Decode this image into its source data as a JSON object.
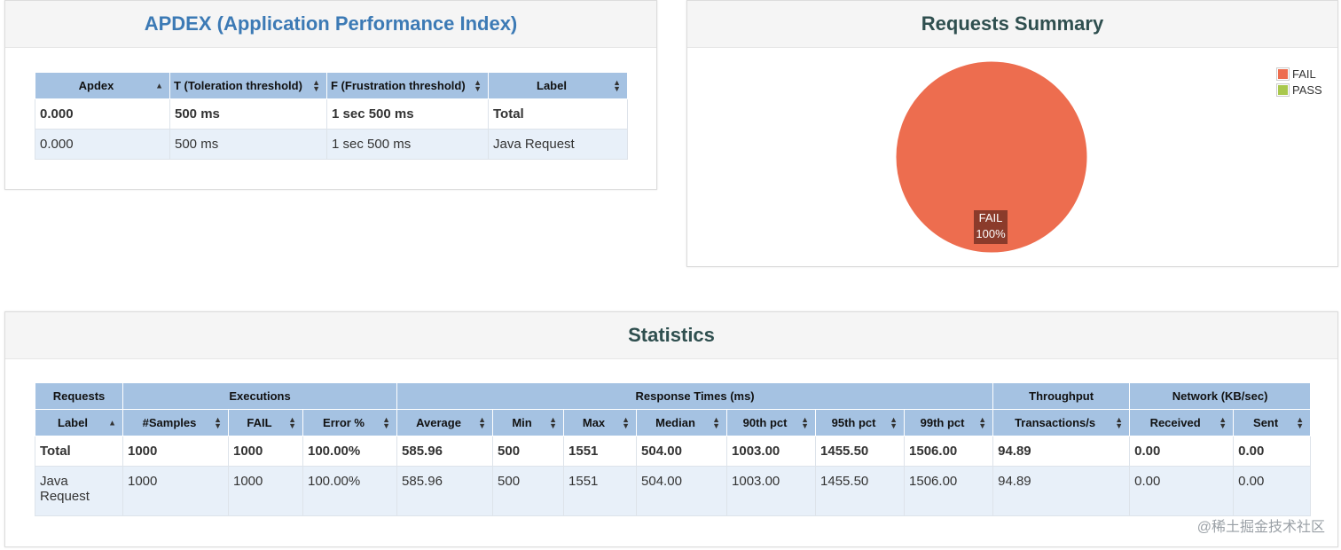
{
  "apdex": {
    "title": "APDEX (Application Performance Index)",
    "headers": [
      "Apdex",
      "T (Toleration threshold)",
      "F (Frustration threshold)",
      "Label"
    ],
    "rows": [
      [
        "0.000",
        "500 ms",
        "1 sec 500 ms",
        "Total"
      ],
      [
        "0.000",
        "500 ms",
        "1 sec 500 ms",
        "Java Request"
      ]
    ]
  },
  "summary": {
    "title": "Requests Summary",
    "legend": [
      {
        "label": "FAIL",
        "color": "#ed6d4f"
      },
      {
        "label": "PASS",
        "color": "#a9c84d"
      }
    ],
    "slice_label": "FAIL",
    "slice_pct": "100%"
  },
  "chart_data": {
    "type": "pie",
    "title": "Requests Summary",
    "categories": [
      "FAIL",
      "PASS"
    ],
    "values": [
      100,
      0
    ],
    "colors": [
      "#ed6d4f",
      "#a9c84d"
    ],
    "legend": "top-right"
  },
  "statistics": {
    "title": "Statistics",
    "groups": [
      "Requests",
      "Executions",
      "Response Times (ms)",
      "Throughput",
      "Network (KB/sec)"
    ],
    "headers": [
      "Label",
      "#Samples",
      "FAIL",
      "Error %",
      "Average",
      "Min",
      "Max",
      "Median",
      "90th pct",
      "95th pct",
      "99th pct",
      "Transactions/s",
      "Received",
      "Sent"
    ],
    "rows": [
      [
        "Total",
        "1000",
        "1000",
        "100.00%",
        "585.96",
        "500",
        "1551",
        "504.00",
        "1003.00",
        "1455.50",
        "1506.00",
        "94.89",
        "0.00",
        "0.00"
      ],
      [
        "Java Request",
        "1000",
        "1000",
        "100.00%",
        "585.96",
        "500",
        "1551",
        "504.00",
        "1003.00",
        "1455.50",
        "1506.00",
        "94.89",
        "0.00",
        "0.00"
      ]
    ]
  },
  "watermark": "@稀土掘金技术社区"
}
